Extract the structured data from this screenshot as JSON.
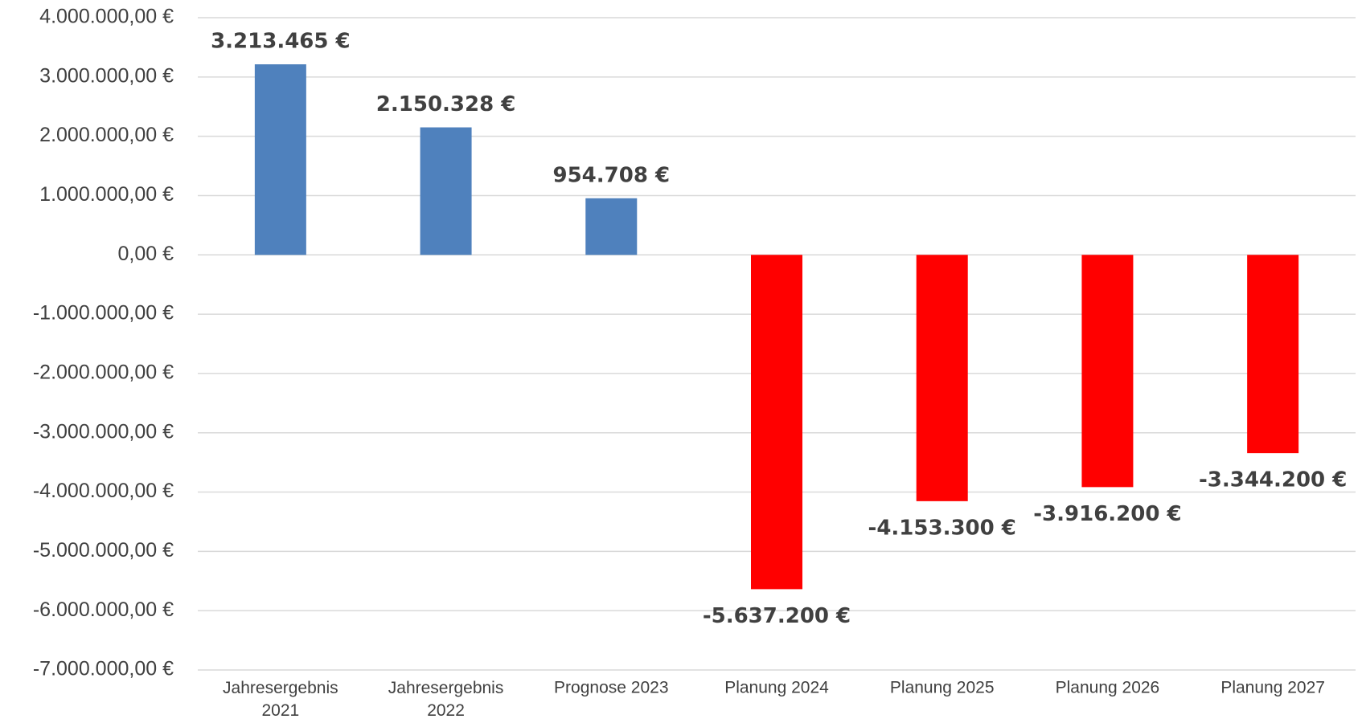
{
  "chart_data": {
    "type": "bar",
    "categories": [
      "Jahresergebnis 2021",
      "Jahresergebnis 2022",
      "Prognose 2023",
      "Planung 2024",
      "Planung 2025",
      "Planung 2026",
      "Planung 2027"
    ],
    "values": [
      3213465,
      2150328,
      954708,
      -5637200,
      -4153300,
      -3916200,
      -3344200
    ],
    "value_labels": [
      "3.213.465 €",
      "2.150.328 €",
      "954.708 €",
      "-5.637.200 €",
      "-4.153.300 €",
      "-3.916.200 €",
      "-3.344.200 €"
    ],
    "colors": [
      "#4f81bd",
      "#4f81bd",
      "#4f81bd",
      "#ff0000",
      "#ff0000",
      "#ff0000",
      "#ff0000"
    ],
    "ylim": [
      -7000000,
      4000000
    ],
    "yticks": [
      {
        "value": -7000000,
        "label": "-7.000.000,00 €"
      },
      {
        "value": -6000000,
        "label": "-6.000.000,00 €"
      },
      {
        "value": -5000000,
        "label": "-5.000.000,00 €"
      },
      {
        "value": -4000000,
        "label": "-4.000.000,00 €"
      },
      {
        "value": -3000000,
        "label": "-3.000.000,00 €"
      },
      {
        "value": -2000000,
        "label": "-2.000.000,00 €"
      },
      {
        "value": -1000000,
        "label": "-1.000.000,00 €"
      },
      {
        "value": 0,
        "label": "0,00 €"
      },
      {
        "value": 1000000,
        "label": "1.000.000,00 €"
      },
      {
        "value": 2000000,
        "label": "2.000.000,00 €"
      },
      {
        "value": 3000000,
        "label": "3.000.000,00 €"
      },
      {
        "value": 4000000,
        "label": "4.000.000,00 €"
      }
    ],
    "grid": true
  }
}
